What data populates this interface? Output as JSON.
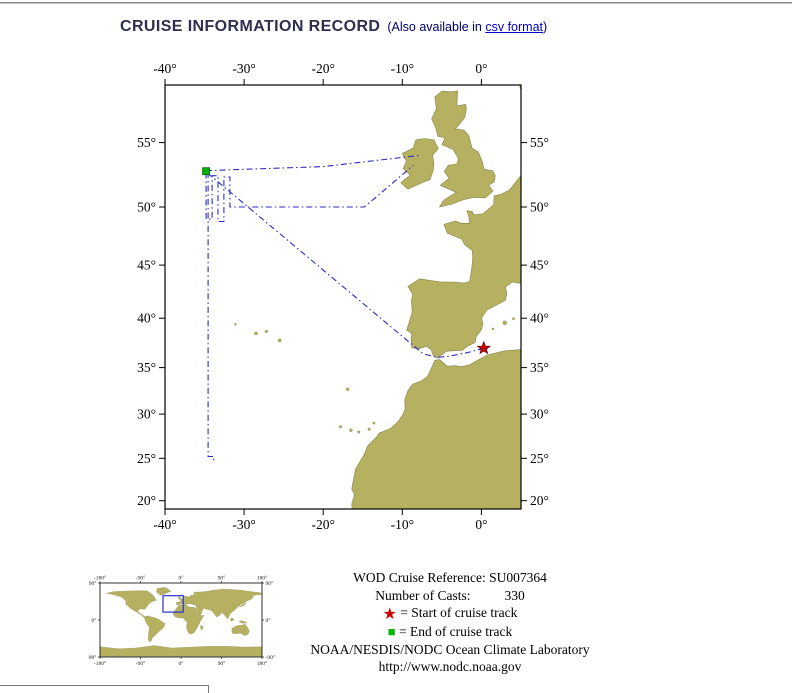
{
  "page": {
    "title": "CRUISE INFORMATION RECORD",
    "availability_prefix": "(Also available in ",
    "csv_link_label": "csv format",
    "availability_suffix": ")"
  },
  "info": {
    "cruise_reference_label": "WOD Cruise Reference:",
    "cruise_reference_value": "SU007364",
    "casts_label": "Number of Casts:",
    "casts_value": "330",
    "start_legend": "= Start of cruise track",
    "end_legend": "= End of cruise track",
    "organization": "NOAA/NESDIS/NODC Ocean Climate Laboratory",
    "website": "http://www.nodc.noaa.gov"
  },
  "colors": {
    "land": "#b6b161",
    "ocean": "#ffffff",
    "track": "#2b2bc8",
    "start_marker": "#cc0000",
    "end_marker": "#00b400",
    "extent_box": "#2233cc",
    "link": "#0000cc",
    "title_text": "#2e2e50",
    "subtitle_text": "#000066"
  },
  "chart_data": {
    "type": "map",
    "description": "North Atlantic cruise track map for WOD cruise SU007364",
    "projection": "mercator",
    "lon_range": [
      -40,
      5
    ],
    "lat_range": [
      19,
      59
    ],
    "lon_ticks": [
      {
        "value": -40,
        "label": "-40°"
      },
      {
        "value": -30,
        "label": "-30°"
      },
      {
        "value": -20,
        "label": "-20°"
      },
      {
        "value": -10,
        "label": "-10°"
      },
      {
        "value": 0,
        "label": "0°"
      }
    ],
    "lat_ticks": [
      {
        "value": 55,
        "label": "55°"
      },
      {
        "value": 50,
        "label": "50°"
      },
      {
        "value": 45,
        "label": "45°"
      },
      {
        "value": 40,
        "label": "40°"
      },
      {
        "value": 35,
        "label": "35°"
      },
      {
        "value": 30,
        "label": "30°"
      },
      {
        "value": 25,
        "label": "25°"
      },
      {
        "value": 20,
        "label": "20°"
      }
    ],
    "start_marker": {
      "symbol": "star",
      "lon": 0.3,
      "lat": 37.0
    },
    "end_marker": {
      "symbol": "square",
      "lon": -34.8,
      "lat": 52.85
    },
    "track_segments": [
      [
        [
          0.3,
          37.0
        ],
        [
          -1.8,
          36.55
        ],
        [
          -4.0,
          36.2
        ],
        [
          -5.6,
          36.05
        ],
        [
          -7.4,
          36.45
        ],
        [
          -34.8,
          52.8
        ]
      ],
      [
        [
          -34.8,
          52.9
        ],
        [
          -20.0,
          53.2
        ],
        [
          -7.8,
          54.05
        ]
      ],
      [
        [
          -34.8,
          52.75
        ],
        [
          -34.8,
          49.0
        ],
        [
          -34.05,
          49.0
        ],
        [
          -34.05,
          52.5
        ],
        [
          -33.3,
          52.5
        ],
        [
          -33.3,
          48.8
        ],
        [
          -32.55,
          48.8
        ],
        [
          -32.55,
          52.4
        ],
        [
          -31.8,
          52.4
        ],
        [
          -31.8,
          50.0
        ],
        [
          -14.8,
          50.0
        ],
        [
          -8.6,
          53.3
        ]
      ],
      [
        [
          -34.55,
          52.8
        ],
        [
          -34.55,
          25.2
        ],
        [
          -33.85,
          25.2
        ],
        [
          -33.85,
          24.6
        ]
      ]
    ],
    "inset": {
      "lon_range": [
        -180,
        180
      ],
      "lat_range": [
        -90,
        90
      ],
      "lon_tick_labels": [
        {
          "value": -180,
          "label": "-180°"
        },
        {
          "value": -90,
          "label": "-90°"
        },
        {
          "value": 0,
          "label": "0°"
        },
        {
          "value": 90,
          "label": "90°"
        },
        {
          "value": 180,
          "label": "180°"
        }
      ],
      "lat_tick_labels": [
        {
          "value": 90,
          "label": "90°"
        },
        {
          "value": 0,
          "label": "0°"
        },
        {
          "value": -90,
          "label": "-90°"
        }
      ],
      "extent_box": {
        "lon": [
          -40,
          5
        ],
        "lat": [
          19,
          59
        ]
      }
    }
  }
}
